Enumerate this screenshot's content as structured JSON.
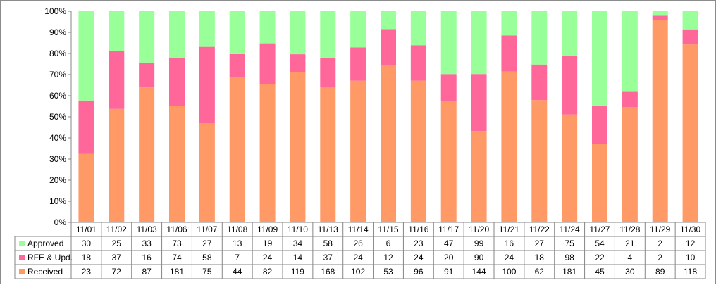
{
  "chart_data": {
    "type": "bar",
    "stacked": "percent",
    "categories": [
      "11/01",
      "11/02",
      "11/03",
      "11/06",
      "11/07",
      "11/08",
      "11/09",
      "11/10",
      "11/13",
      "11/14",
      "11/15",
      "11/16",
      "11/17",
      "11/20",
      "11/21",
      "11/22",
      "11/24",
      "11/27",
      "11/28",
      "11/29",
      "11/30"
    ],
    "y_tick_labels": [
      "0%",
      "10%",
      "20%",
      "30%",
      "40%",
      "50%",
      "60%",
      "70%",
      "80%",
      "90%",
      "100%"
    ],
    "ylim": [
      0,
      100
    ],
    "grid": false,
    "legend": "data-table",
    "series": [
      {
        "name": "Approved",
        "color": "#99ff99",
        "values": [
          30,
          25,
          33,
          73,
          27,
          13,
          19,
          34,
          58,
          26,
          6,
          23,
          47,
          99,
          16,
          27,
          75,
          54,
          21,
          2,
          12
        ]
      },
      {
        "name": "RFE & Upd.",
        "color": "#ff6699",
        "values": [
          18,
          37,
          16,
          74,
          58,
          7,
          24,
          14,
          37,
          24,
          12,
          24,
          20,
          90,
          24,
          18,
          98,
          22,
          4,
          2,
          10
        ]
      },
      {
        "name": "Received",
        "color": "#ff9966",
        "values": [
          23,
          72,
          87,
          181,
          75,
          44,
          82,
          119,
          168,
          102,
          53,
          96,
          91,
          144,
          100,
          62,
          181,
          45,
          30,
          89,
          118
        ]
      }
    ]
  }
}
